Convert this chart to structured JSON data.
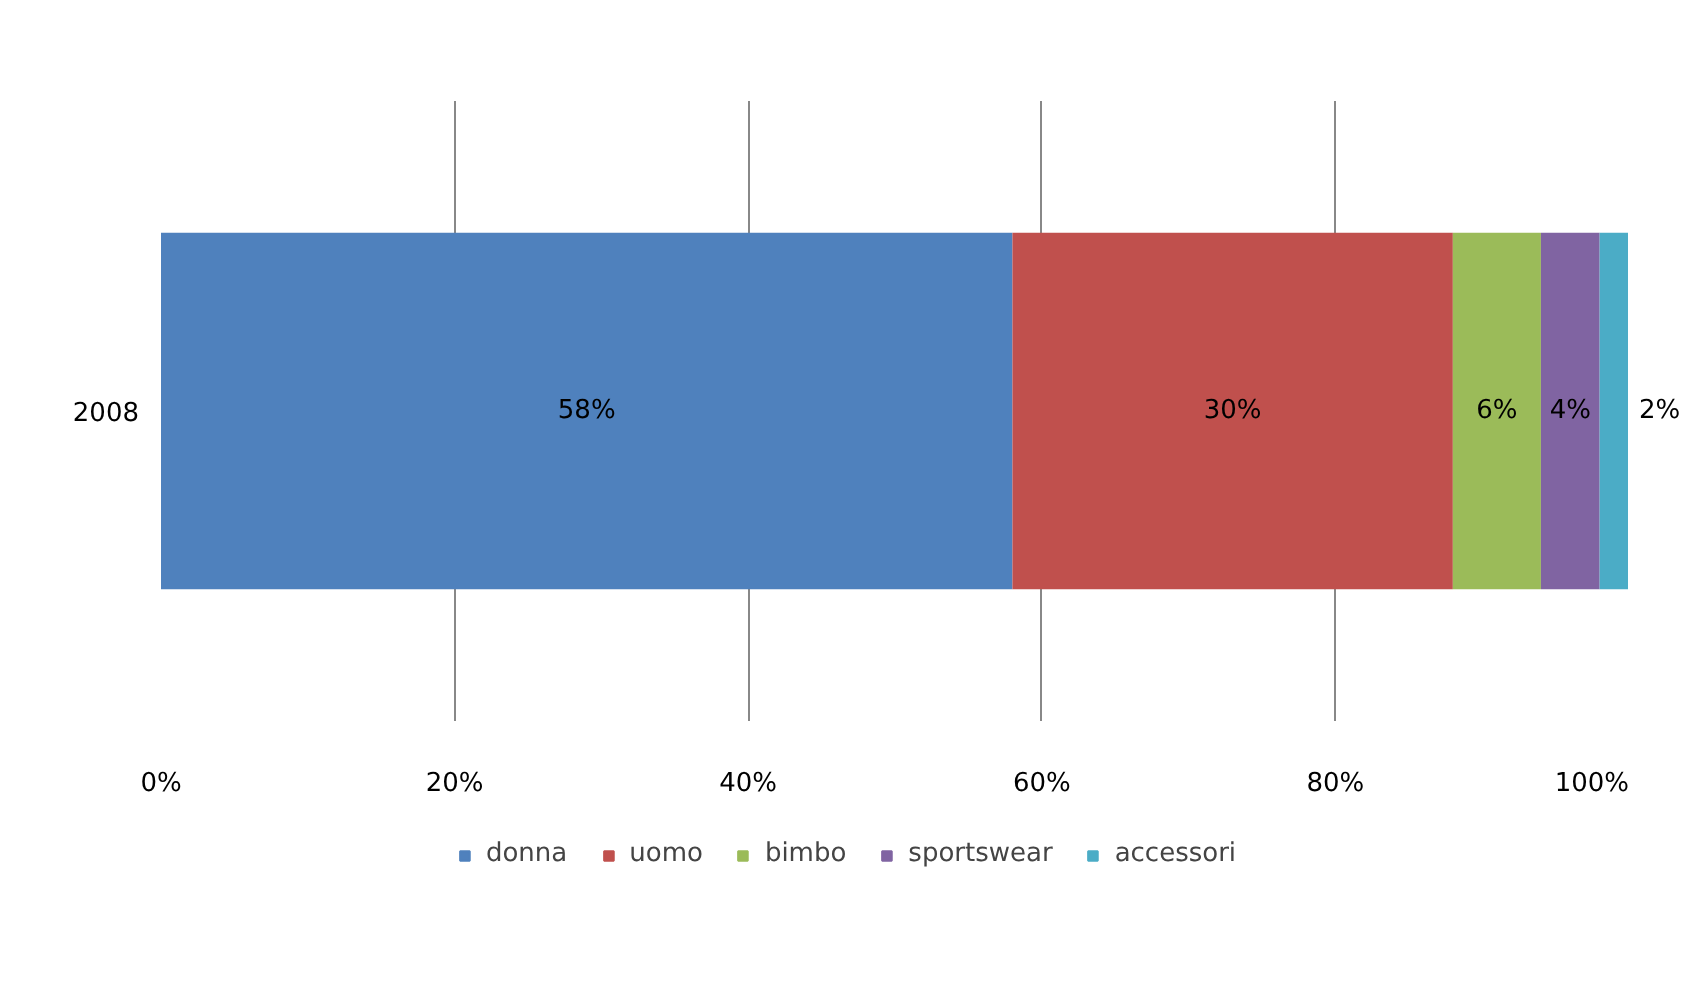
{
  "chart_data": {
    "type": "bar",
    "orientation": "horizontal",
    "stacked": true,
    "categories": [
      "2008"
    ],
    "series": [
      {
        "name": "donna",
        "color": "#4f81bd",
        "values": [
          58
        ],
        "value_labels": [
          "58%"
        ]
      },
      {
        "name": "uomo",
        "color": "#c0504d",
        "values": [
          30
        ],
        "value_labels": [
          "30%"
        ]
      },
      {
        "name": "bimbo",
        "color": "#9bbb59",
        "values": [
          6
        ],
        "value_labels": [
          "6%"
        ]
      },
      {
        "name": "sportswear",
        "color": "#8064a2",
        "values": [
          4
        ],
        "value_labels": [
          "4%"
        ]
      },
      {
        "name": "accessori",
        "color": "#4bacc6",
        "values": [
          2
        ],
        "value_labels": [
          "2%"
        ]
      }
    ],
    "xlim": [
      0,
      100
    ],
    "xticks": [
      {
        "value": 0,
        "label": "0%"
      },
      {
        "value": 20,
        "label": "20%"
      },
      {
        "value": 40,
        "label": "40%"
      },
      {
        "value": 60,
        "label": "60%"
      },
      {
        "value": 80,
        "label": "80%"
      },
      {
        "value": 100,
        "label": "100%"
      }
    ],
    "grid": "x",
    "legend": "bottom"
  }
}
